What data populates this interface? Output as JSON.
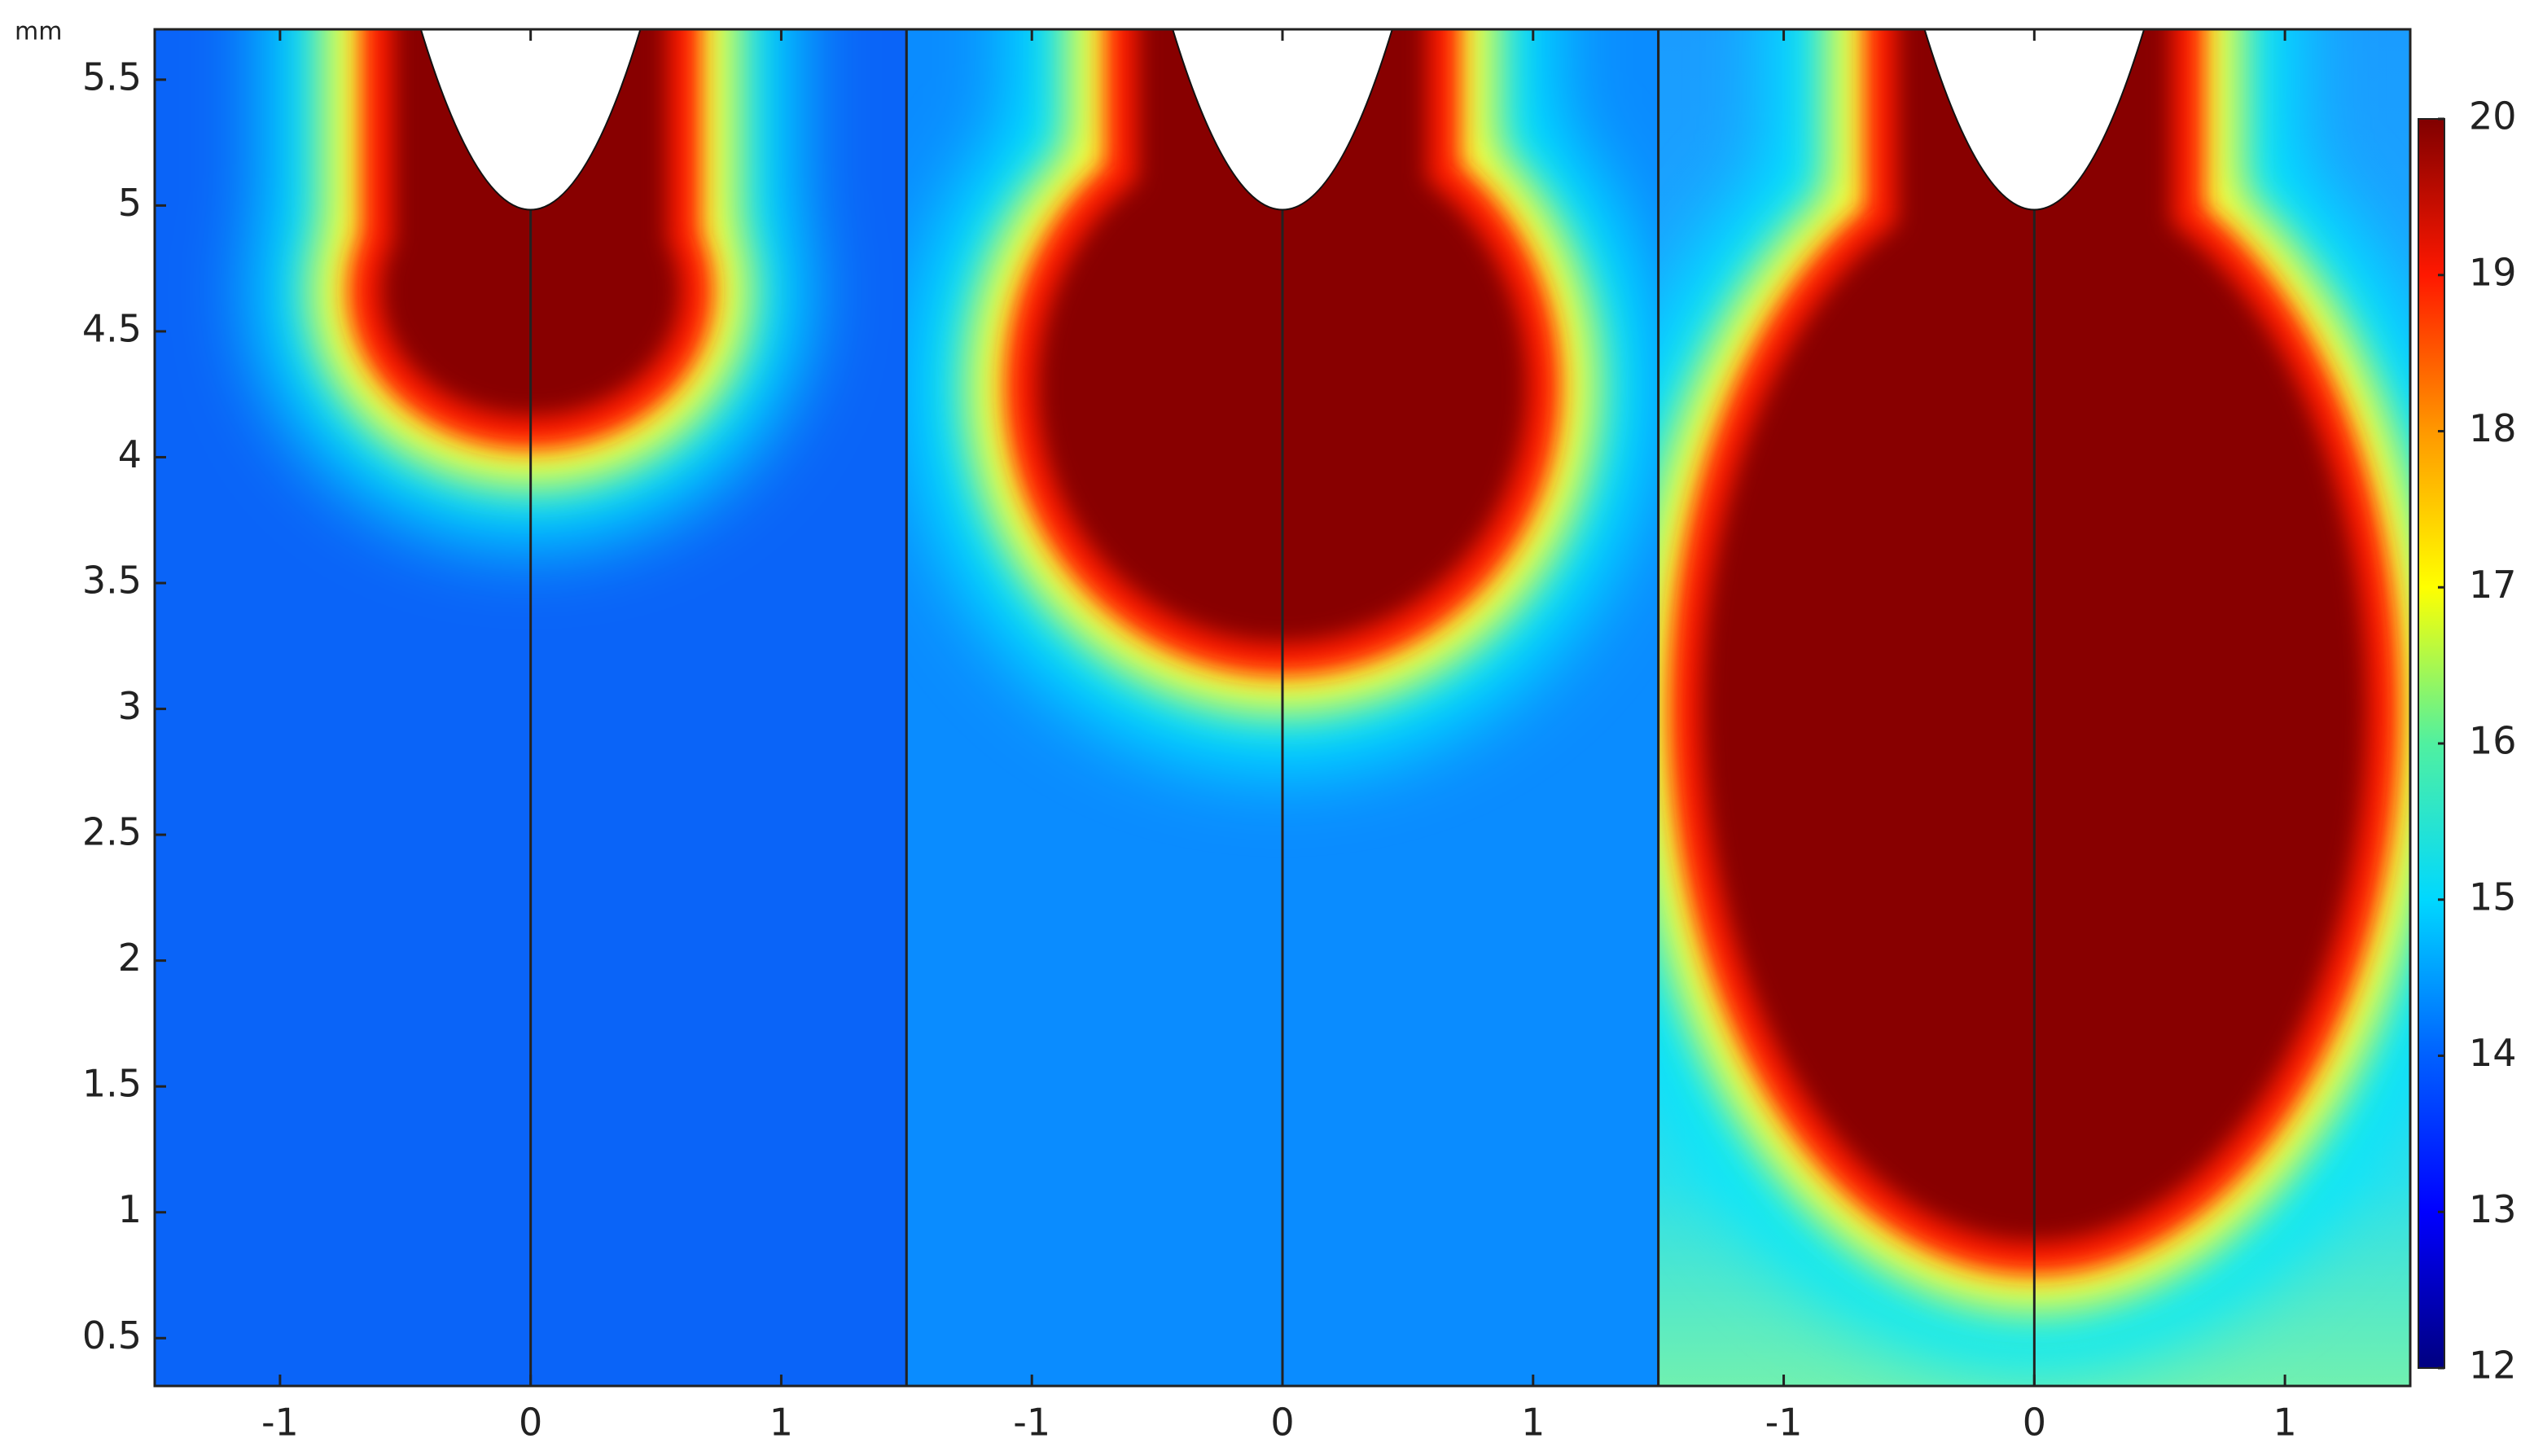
{
  "chart_data": {
    "type": "heatmap",
    "y_unit": "mm",
    "ylim": [
      0.31,
      5.7
    ],
    "yticks": [
      0.5,
      1,
      1.5,
      2,
      2.5,
      3,
      3.5,
      4,
      4.5,
      5,
      5.5
    ],
    "panels": [
      {
        "xlim": [
          -1.5,
          1.5
        ],
        "xticks": [
          -1,
          0,
          1
        ]
      },
      {
        "xlim": [
          -1.5,
          1.5
        ],
        "xticks": [
          -1,
          0,
          1
        ]
      },
      {
        "xlim": [
          -1.5,
          1.5
        ],
        "xticks": [
          -1,
          0,
          1
        ]
      }
    ],
    "colorbar": {
      "lim": [
        12,
        20
      ],
      "ticks": [
        12,
        13,
        14,
        15,
        16,
        17,
        18,
        19,
        20
      ],
      "colors": [
        "#000080",
        "#0000ff",
        "#0060ff",
        "#00d8ff",
        "#50f0a0",
        "#ffff00",
        "#ff9800",
        "#ff1800",
        "#800000"
      ]
    }
  }
}
